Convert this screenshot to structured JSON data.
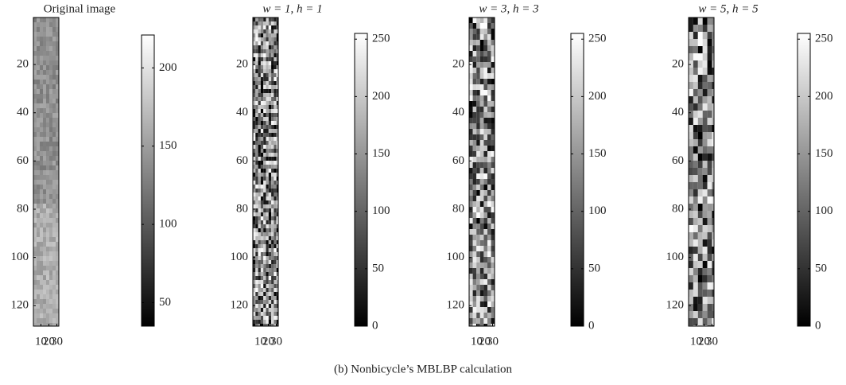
{
  "chart_data": [
    {
      "type": "image",
      "title": "Original image",
      "xlim": [
        0.5,
        32.5
      ],
      "ylim": [
        0.5,
        128.5
      ],
      "y_reversed": true,
      "xticks": [
        10,
        20,
        30
      ],
      "yticks": [
        20,
        40,
        60,
        80,
        100,
        120
      ],
      "colorbar": {
        "clim": [
          35,
          221
        ],
        "ticks": [
          50,
          100,
          150,
          200
        ]
      }
    },
    {
      "type": "image",
      "title": "w = 1, h = 1",
      "xlim": [
        0.5,
        32.5
      ],
      "ylim": [
        0.5,
        128.5
      ],
      "y_reversed": true,
      "xticks": [
        10,
        20,
        30
      ],
      "yticks": [
        20,
        40,
        60,
        80,
        100,
        120
      ],
      "colorbar": {
        "clim": [
          0,
          255
        ],
        "ticks": [
          0,
          50,
          100,
          150,
          200,
          250
        ]
      }
    },
    {
      "type": "image",
      "title": "w = 3, h = 3",
      "xlim": [
        0.5,
        32.5
      ],
      "ylim": [
        0.5,
        128.5
      ],
      "y_reversed": true,
      "xticks": [
        10,
        20,
        30
      ],
      "yticks": [
        20,
        40,
        60,
        80,
        100,
        120
      ],
      "colorbar": {
        "clim": [
          0,
          255
        ],
        "ticks": [
          0,
          50,
          100,
          150,
          200,
          250
        ]
      }
    },
    {
      "type": "image",
      "title": "w = 5, h = 5",
      "xlim": [
        0.5,
        32.5
      ],
      "ylim": [
        0.5,
        128.5
      ],
      "y_reversed": true,
      "xticks": [
        10,
        20,
        30
      ],
      "yticks": [
        20,
        40,
        60,
        80,
        100,
        120
      ],
      "colorbar": {
        "clim": [
          0,
          255
        ],
        "ticks": [
          0,
          50,
          100,
          150,
          200,
          250
        ]
      }
    }
  ],
  "caption": "(b) Nonbicycle’s MBLBP calculation"
}
